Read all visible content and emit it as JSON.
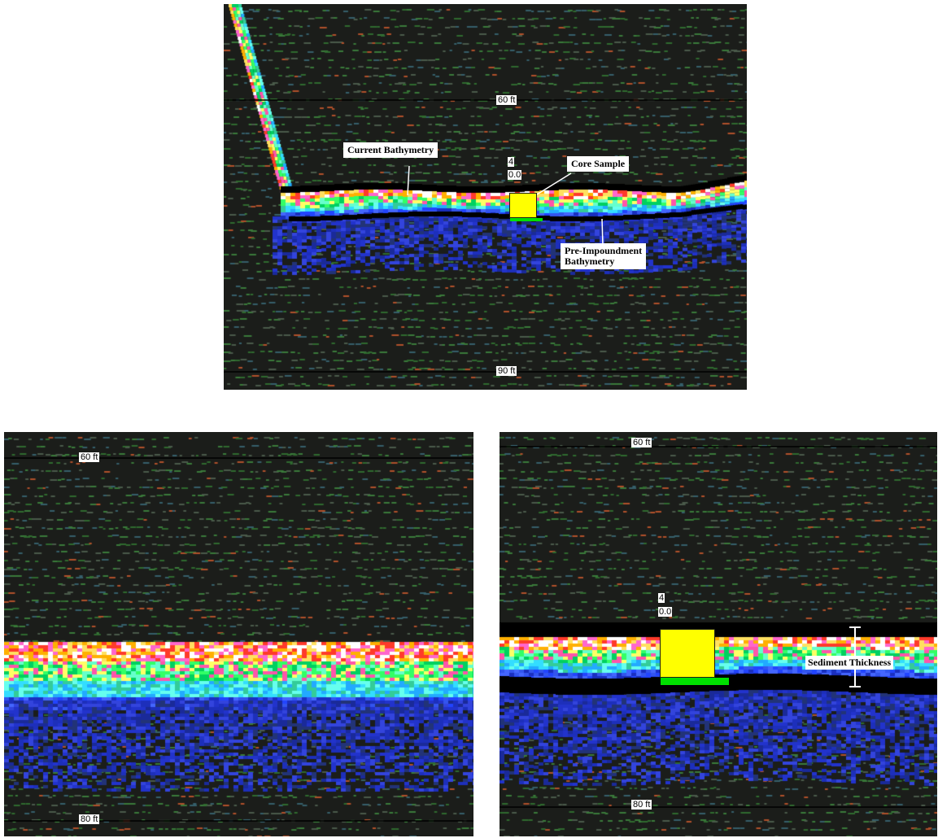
{
  "top_panel": {
    "depth_labels": {
      "upper": "60 ft",
      "lower": "90 ft"
    },
    "sample_number": "4",
    "sample_value": "0.0",
    "callouts": {
      "current_bathymetry": "Current Bathymetry",
      "core_sample": "Core Sample",
      "pre_impoundment_line1": "Pre-Impoundment",
      "pre_impoundment_line2": "Bathymetry"
    }
  },
  "bottom_left_panel": {
    "depth_labels": {
      "upper": "60 ft",
      "lower": "80 ft"
    }
  },
  "bottom_right_panel": {
    "depth_labels": {
      "upper": "60 ft",
      "lower": "80 ft"
    },
    "sample_number": "4",
    "sample_value": "0.0",
    "callouts": {
      "sediment_thickness": "Sediment Thickness"
    }
  },
  "colors": {
    "background": "#1b1d1a",
    "core_sample": "#ffff00",
    "core_marker_bar": "#00e000",
    "depth_line": "#000000"
  }
}
